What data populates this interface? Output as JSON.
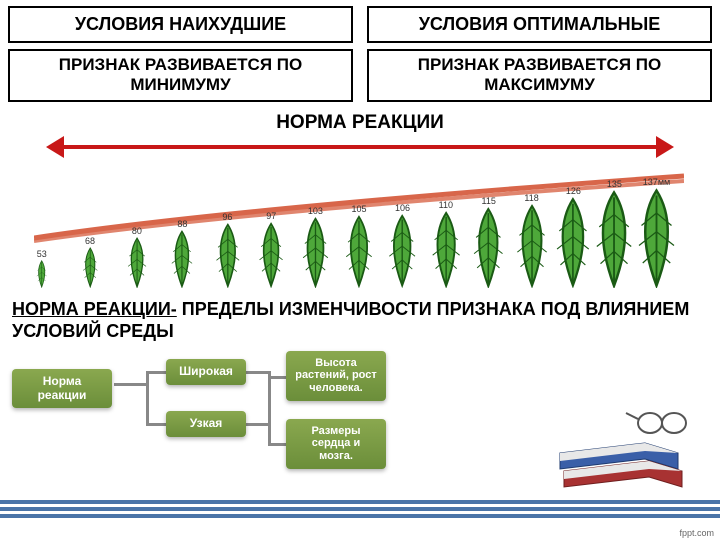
{
  "top": {
    "left": "УСЛОВИЯ НАИХУДШИЕ",
    "right": "УСЛОВИЯ ОПТИМАЛЬНЫЕ"
  },
  "sub": {
    "left": "ПРИЗНАК РАЗВИВАЕТСЯ ПО  МИНИМУМУ",
    "right": "ПРИЗНАК РАЗВИВАЕТСЯ ПО МАКСИМУМУ"
  },
  "norm_title": "НОРМА РЕАКЦИИ",
  "leaves": {
    "values": [
      53,
      68,
      80,
      88,
      96,
      97,
      103,
      105,
      106,
      110,
      115,
      118,
      126,
      135,
      137
    ],
    "last_unit": "мм",
    "leaf_fill": "#4ea83a",
    "leaf_stroke": "#1a5a14",
    "trend_color": "#d8664a",
    "axis_color": "#333333"
  },
  "definition": {
    "underlined": "НОРМА РЕАКЦИИ-",
    "rest": " ПРЕДЕЛЫ ИЗМЕНЧИВОСТИ ПРИЗНАКА ПОД ВЛИЯНИЕМ УСЛОВИЙ СРЕДЫ"
  },
  "tree": {
    "node_bg": "#6b8e3a",
    "root": "Норма реакции",
    "mid1": "Широкая",
    "mid2": "Узкая",
    "leaf1": "Высота растений, рост человека.",
    "leaf2": "Размеры сердца и мозга."
  },
  "footer": "fppt.com",
  "colors": {
    "arrow": "#c81818",
    "box_border": "#000000",
    "stripe": "#4a74a8",
    "book1": "#3a5fa8",
    "book2": "#a83232"
  }
}
